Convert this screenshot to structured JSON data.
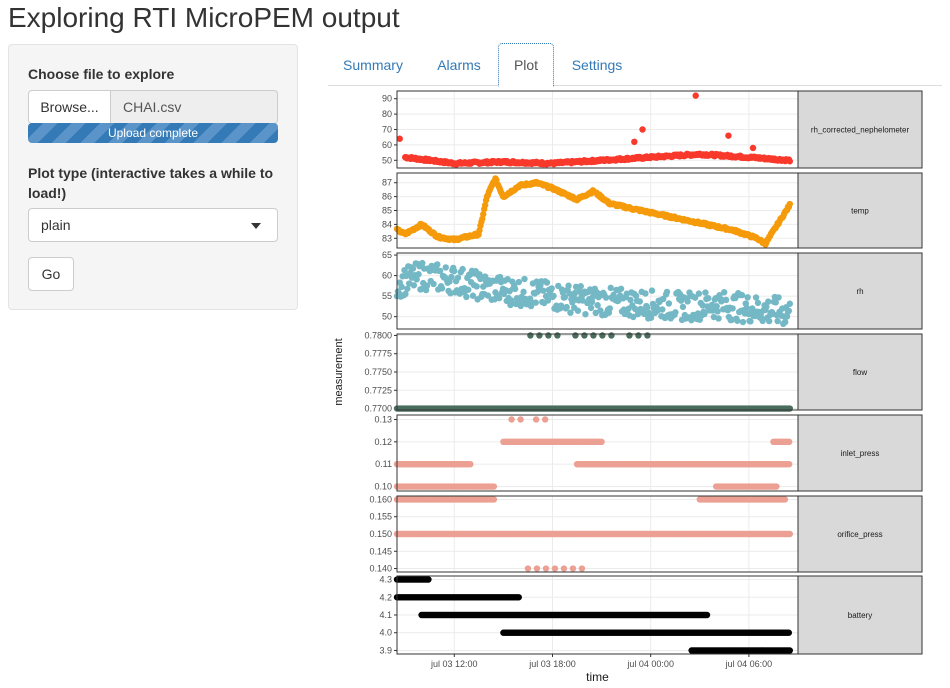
{
  "page": {
    "title": "Exploring RTI MicroPEM output"
  },
  "sidebar": {
    "file_label": "Choose file to explore",
    "browse_label": "Browse...",
    "file_name": "CHAI.csv",
    "upload_status": "Upload complete",
    "upload_progress_percent": 100,
    "plot_type_label": "Plot type (interactive takes a while to load!)",
    "plot_type_value": "plain",
    "go_label": "Go"
  },
  "tabs": [
    {
      "label": "Summary",
      "active": false
    },
    {
      "label": "Alarms",
      "active": false
    },
    {
      "label": "Plot",
      "active": true
    },
    {
      "label": "Settings",
      "active": false
    }
  ],
  "colors": {
    "link": "#337ab7",
    "strip_bg": "#d9d9d9",
    "panel_border": "#333333",
    "grid": "#ebebeb"
  },
  "chart_data": {
    "type": "scatter",
    "xlabel": "time",
    "ylabel": "measurement",
    "x_ticks": [
      "jul 03 12:00",
      "jul 03 18:00",
      "jul 04 00:00",
      "jul 04 06:00"
    ],
    "x_range": [
      "jul 03 08:30",
      "jul 04 09:00"
    ],
    "panels": [
      {
        "name": "rh_corrected_nephelometer",
        "color": "#f8392b",
        "ylim": [
          45,
          95
        ],
        "yticks": [
          "50",
          "60",
          "70",
          "80",
          "90"
        ],
        "tick_values": [
          50,
          60,
          70,
          80,
          90
        ],
        "x": [
          "jul 03 09:00",
          "jul 03 12:00",
          "jul 03 15:00",
          "jul 03 18:00",
          "jul 03 21:00",
          "jul 04 00:00",
          "jul 04 03:00",
          "jul 04 06:00",
          "jul 04 08:30"
        ],
        "y": [
          52,
          48,
          49,
          48,
          50,
          52,
          54,
          52,
          50
        ],
        "outliers": [
          {
            "x": "jul 03 08:40",
            "y": 64
          },
          {
            "x": "jul 03 23:00",
            "y": 62
          },
          {
            "x": "jul 03 23:30",
            "y": 70
          },
          {
            "x": "jul 04 02:45",
            "y": 92
          },
          {
            "x": "jul 04 04:45",
            "y": 66
          },
          {
            "x": "jul 04 06:15",
            "y": 58
          }
        ]
      },
      {
        "name": "temp",
        "color": "#f59a0a",
        "ylim": [
          82.3,
          87.7
        ],
        "yticks": [
          "83",
          "84",
          "85",
          "86",
          "87"
        ],
        "tick_values": [
          83,
          84,
          85,
          86,
          87
        ],
        "x": [
          "jul 03 08:30",
          "jul 03 09:00",
          "jul 03 10:00",
          "jul 03 11:00",
          "jul 03 12:00",
          "jul 03 13:30",
          "jul 03 14:00",
          "jul 03 14:30",
          "jul 03 15:00",
          "jul 03 16:00",
          "jul 03 17:00",
          "jul 03 18:00",
          "jul 03 19:30",
          "jul 03 20:30",
          "jul 03 21:30",
          "jul 03 23:00",
          "jul 04 01:00",
          "jul 04 03:00",
          "jul 04 05:00",
          "jul 04 06:30",
          "jul 04 07:00",
          "jul 04 07:45",
          "jul 04 08:30"
        ],
        "y": [
          83.6,
          83.3,
          84.0,
          83.1,
          82.9,
          83.3,
          86.0,
          87.3,
          86.0,
          86.8,
          87.0,
          86.6,
          85.8,
          86.4,
          85.5,
          85.1,
          84.6,
          84.1,
          83.6,
          83.0,
          82.6,
          84.0,
          85.4
        ]
      },
      {
        "name": "rh",
        "color": "#74b8c6",
        "ylim": [
          47,
          65.5
        ],
        "yticks": [
          "50",
          "55",
          "60",
          "65"
        ],
        "tick_values": [
          50,
          55,
          60,
          65
        ],
        "x": [
          "jul 03 08:30",
          "jul 03 10:00",
          "jul 03 12:00",
          "jul 03 14:00",
          "jul 03 16:00",
          "jul 03 18:00",
          "jul 03 20:00",
          "jul 03 22:00",
          "jul 04 00:00",
          "jul 04 02:00",
          "jul 04 04:00",
          "jul 04 06:00",
          "jul 04 08:30"
        ],
        "y": [
          58,
          60,
          59,
          57,
          56,
          55,
          54,
          53.5,
          53,
          52.5,
          53,
          52,
          51
        ],
        "spread": 3.5
      },
      {
        "name": "flow",
        "color": "#4a6e5e",
        "ylim": [
          0.7698,
          0.7802
        ],
        "yticks": [
          "0.7700",
          "0.7725",
          "0.7750",
          "0.7775",
          "0.7800"
        ],
        "tick_values": [
          0.77,
          0.7725,
          0.775,
          0.7775,
          0.78
        ],
        "levels": [
          {
            "y": 0.77,
            "from": "jul 03 08:30",
            "to": "jul 04 08:30"
          },
          {
            "y": 0.78,
            "from": "jul 03 15:00",
            "to": "jul 04 00:30",
            "sparse": true
          }
        ]
      },
      {
        "name": "inlet_press",
        "color": "#eba093",
        "ylim": [
          0.098,
          0.132
        ],
        "yticks": [
          "0.10",
          "0.11",
          "0.12",
          "0.13"
        ],
        "tick_values": [
          0.1,
          0.11,
          0.12,
          0.13
        ],
        "levels": [
          {
            "y": 0.13,
            "from": "jul 03 15:30",
            "to": "jul 03 16:30",
            "sparse": true
          },
          {
            "y": 0.13,
            "from": "jul 03 17:00",
            "to": "jul 03 17:45",
            "sparse": true
          },
          {
            "y": 0.12,
            "from": "jul 03 15:00",
            "to": "jul 03 21:00"
          },
          {
            "y": 0.12,
            "from": "jul 04 07:30",
            "to": "jul 04 08:30"
          },
          {
            "y": 0.11,
            "from": "jul 03 08:30",
            "to": "jul 03 13:00"
          },
          {
            "y": 0.11,
            "from": "jul 03 19:30",
            "to": "jul 04 08:30"
          },
          {
            "y": 0.1,
            "from": "jul 03 08:30",
            "to": "jul 03 14:30"
          },
          {
            "y": 0.1,
            "from": "jul 04 04:00",
            "to": "jul 04 07:45"
          }
        ]
      },
      {
        "name": "orifice_press",
        "color": "#eba093",
        "ylim": [
          0.139,
          0.161
        ],
        "yticks": [
          "0.140",
          "0.145",
          "0.150",
          "0.155",
          "0.160"
        ],
        "tick_values": [
          0.14,
          0.145,
          0.15,
          0.155,
          0.16
        ],
        "levels": [
          {
            "y": 0.16,
            "from": "jul 03 08:30",
            "to": "jul 03 14:30"
          },
          {
            "y": 0.16,
            "from": "jul 04 03:00",
            "to": "jul 04 08:15"
          },
          {
            "y": 0.15,
            "from": "jul 03 08:30",
            "to": "jul 04 08:30"
          },
          {
            "y": 0.14,
            "from": "jul 03 16:30",
            "to": "jul 03 20:00",
            "sparse": true
          }
        ]
      },
      {
        "name": "battery",
        "color": "#000000",
        "ylim": [
          3.88,
          4.32
        ],
        "yticks": [
          "3.9",
          "4.0",
          "4.1",
          "4.2",
          "4.3"
        ],
        "tick_values": [
          3.9,
          4.0,
          4.1,
          4.2,
          4.3
        ],
        "levels": [
          {
            "y": 4.3,
            "from": "jul 03 08:30",
            "to": "jul 03 10:30"
          },
          {
            "y": 4.2,
            "from": "jul 03 08:30",
            "to": "jul 03 16:00"
          },
          {
            "y": 4.1,
            "from": "jul 03 10:00",
            "to": "jul 04 03:30"
          },
          {
            "y": 4.0,
            "from": "jul 03 15:00",
            "to": "jul 04 08:30"
          },
          {
            "y": 3.9,
            "from": "jul 04 02:30",
            "to": "jul 04 08:30"
          }
        ]
      }
    ]
  }
}
